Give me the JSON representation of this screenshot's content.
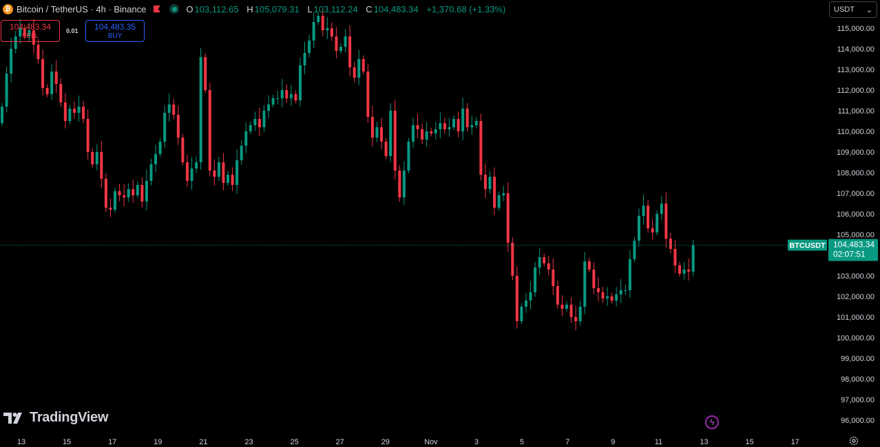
{
  "header": {
    "coin_letter": "₿",
    "symbol_title": "Bitcoin / TetherUS · 4h · Binance",
    "ohlc": {
      "o_label": "O",
      "o_value": "103,112.65",
      "h_label": "H",
      "h_value": "105,079.31",
      "l_label": "L",
      "l_value": "103,112.24",
      "c_label": "C",
      "c_value": "104,483.34",
      "change": "+1,370.68 (+1.33%)"
    }
  },
  "trade": {
    "sell_price": "104,483.34",
    "sell_label": "SELL",
    "spread": "0.01",
    "buy_price": "104,483.35",
    "buy_label": "BUY"
  },
  "currency": {
    "value": "USDT",
    "arrow": "⌄"
  },
  "brand": {
    "name": "TradingView"
  },
  "colors": {
    "up": "#089981",
    "down": "#f23645",
    "background": "#000000",
    "text": "#d1d4dc"
  },
  "chart_data": {
    "type": "candlestick",
    "symbol": "BTCUSDT",
    "interval": "4h",
    "ylim": [
      95500,
      116000
    ],
    "y_ticks": [
      96000,
      97000,
      98000,
      99000,
      100000,
      101000,
      102000,
      103000,
      104000,
      105000,
      106000,
      107000,
      108000,
      109000,
      110000,
      111000,
      112000,
      113000,
      114000,
      115000
    ],
    "y_tick_labels": [
      "96,000.00",
      "97,000.00",
      "98,000.00",
      "99,000.00",
      "100,000.00",
      "101,000.00",
      "102,000.00",
      "103,000.00",
      "104,000.00",
      "105,000.00",
      "106,000.00",
      "107,000.00",
      "108,000.00",
      "109,000.00",
      "110,000.00",
      "111,000.00",
      "112,000.00",
      "113,000.00",
      "114,000.00",
      "115,000.00"
    ],
    "x_ticks": [
      "13",
      "15",
      "17",
      "19",
      "21",
      "23",
      "25",
      "27",
      "29",
      "Nov",
      "3",
      "5",
      "7",
      "9",
      "11",
      "13",
      "15",
      "17"
    ],
    "last_price": 104483.34,
    "last_price_label": "104,483.34",
    "countdown": "02:07:51",
    "symbol_tag": "BTCUSDT",
    "closes": [
      111200,
      112800,
      114000,
      114600,
      115000,
      114600,
      114900,
      114200,
      113500,
      112100,
      111800,
      112900,
      112300,
      111400,
      110500,
      111100,
      110900,
      111200,
      110600,
      109000,
      108400,
      109000,
      107700,
      106300,
      106200,
      107100,
      106900,
      106800,
      107200,
      106900,
      107400,
      106600,
      107600,
      108400,
      108900,
      109500,
      110900,
      111300,
      110800,
      109700,
      108500,
      107600,
      108200,
      108500,
      113600,
      112000,
      108100,
      107800,
      108500,
      107500,
      107900,
      107400,
      108600,
      109300,
      110000,
      110300,
      110600,
      110200,
      111000,
      111300,
      111600,
      111600,
      112000,
      111600,
      111800,
      111500,
      113200,
      113800,
      114400,
      115300,
      115600,
      114900,
      115000,
      114600,
      113900,
      114100,
      114600,
      113100,
      112600,
      113500,
      112900,
      110700,
      109700,
      110200,
      109500,
      108800,
      111000,
      108100,
      106800,
      108100,
      109500,
      110300,
      110100,
      109600,
      110000,
      109900,
      110100,
      110400,
      110100,
      110200,
      110600,
      110000,
      111100,
      110200,
      110300,
      110500,
      107900,
      107200,
      107800,
      106300,
      106900,
      107000,
      104600,
      103000,
      100800,
      101500,
      101800,
      102200,
      103400,
      103900,
      103600,
      103300,
      102500,
      101600,
      101400,
      101600,
      101000,
      100800,
      101500,
      103700,
      103300,
      102400,
      102200,
      101900,
      102000,
      101800,
      102100,
      102300,
      102300,
      103800,
      104700,
      105900,
      106400,
      105300,
      105100,
      106000,
      106500,
      104800,
      104300,
      103500,
      103100,
      103300,
      103200,
      104483
    ]
  }
}
